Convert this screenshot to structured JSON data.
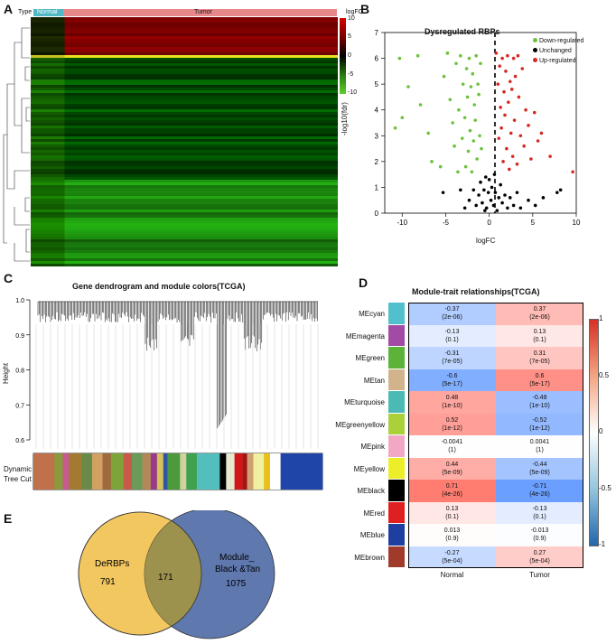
{
  "panels": {
    "A": "A",
    "B": "B",
    "C": "C",
    "D": "D",
    "E": "E"
  },
  "heatmap": {
    "type_label": "Type",
    "normal_label": "Normal",
    "tumor_label": "Tumor",
    "legend_title": "logFC",
    "legend_ticks": [
      "10",
      "5",
      "0",
      "-5",
      "-10"
    ],
    "colors": {
      "normal": "#4fb8c4",
      "tumor": "#e8878a",
      "high": "#d40000",
      "mid": "#000000",
      "low": "#5cd12a"
    }
  },
  "chart_data": [
    {
      "type": "scatter",
      "title": "Dysregulated RBPs",
      "xlabel": "logFC",
      "ylabel": "-log10(fdr)",
      "xlim": [
        -12,
        10
      ],
      "ylim": [
        0,
        7
      ],
      "xticks": [
        "-10",
        "-5",
        "0",
        "5",
        "10"
      ],
      "yticks": [
        "0",
        "1",
        "2",
        "3",
        "4",
        "5",
        "6",
        "7"
      ],
      "legend": [
        {
          "name": "Down-regulated",
          "color": "#6cc13c"
        },
        {
          "name": "Unchanged",
          "color": "#000000"
        },
        {
          "name": "Up-regulated",
          "color": "#d42a22"
        }
      ],
      "threshold_x": 0,
      "series": [
        {
          "name": "Down-regulated",
          "color": "#6cc13c",
          "points": [
            [
              -10.3,
              6.0
            ],
            [
              -8.2,
              6.1
            ],
            [
              -9.3,
              4.9
            ],
            [
              -10.8,
              3.3
            ],
            [
              -10.0,
              3.7
            ],
            [
              -7.9,
              4.2
            ],
            [
              -7.0,
              3.1
            ],
            [
              -6.6,
              2.0
            ],
            [
              -5.6,
              1.8
            ],
            [
              -5.2,
              5.3
            ],
            [
              -4.8,
              6.2
            ],
            [
              -4.5,
              4.4
            ],
            [
              -4.2,
              3.5
            ],
            [
              -4.0,
              2.6
            ],
            [
              -3.8,
              5.8
            ],
            [
              -3.6,
              1.6
            ],
            [
              -3.5,
              4.0
            ],
            [
              -3.3,
              6.1
            ],
            [
              -3.1,
              2.9
            ],
            [
              -3.0,
              5.0
            ],
            [
              -2.8,
              3.7
            ],
            [
              -2.7,
              1.8
            ],
            [
              -2.6,
              5.6
            ],
            [
              -2.5,
              4.5
            ],
            [
              -2.4,
              2.4
            ],
            [
              -2.3,
              6.0
            ],
            [
              -2.2,
              3.2
            ],
            [
              -2.1,
              4.9
            ],
            [
              -2.0,
              1.6
            ],
            [
              -1.9,
              5.4
            ],
            [
              -1.8,
              2.8
            ],
            [
              -1.7,
              4.2
            ],
            [
              -1.6,
              3.6
            ],
            [
              -1.5,
              6.1
            ],
            [
              -1.4,
              2.1
            ],
            [
              -1.3,
              5.0
            ],
            [
              -1.2,
              4.6
            ],
            [
              -1.1,
              3.0
            ],
            [
              -1.0,
              5.8
            ],
            [
              -0.9,
              2.5
            ]
          ]
        },
        {
          "name": "Unchanged",
          "color": "#000000",
          "points": [
            [
              -5.3,
              0.8
            ],
            [
              -3.3,
              0.9
            ],
            [
              -2.8,
              0.2
            ],
            [
              -2.3,
              0.5
            ],
            [
              -1.8,
              0.9
            ],
            [
              -1.5,
              0.3
            ],
            [
              -1.2,
              0.7
            ],
            [
              -1.0,
              1.2
            ],
            [
              -0.8,
              0.4
            ],
            [
              -0.6,
              0.9
            ],
            [
              -0.4,
              1.4
            ],
            [
              -0.3,
              0.2
            ],
            [
              -0.1,
              0.8
            ],
            [
              0.0,
              1.3
            ],
            [
              0.2,
              0.5
            ],
            [
              0.3,
              1.0
            ],
            [
              0.5,
              0.3
            ],
            [
              0.7,
              0.8
            ],
            [
              0.9,
              0.1
            ],
            [
              1.1,
              0.6
            ],
            [
              1.3,
              1.1
            ],
            [
              1.5,
              0.4
            ],
            [
              1.8,
              0.7
            ],
            [
              2.1,
              0.2
            ],
            [
              2.4,
              0.6
            ],
            [
              2.8,
              0.3
            ],
            [
              3.2,
              0.8
            ],
            [
              3.6,
              0.2
            ],
            [
              4.5,
              0.5
            ],
            [
              5.3,
              0.3
            ],
            [
              6.2,
              0.6
            ],
            [
              7.8,
              0.8
            ],
            [
              8.2,
              0.9
            ],
            [
              -0.5,
              0.1
            ],
            [
              0.6,
              1.5
            ]
          ]
        },
        {
          "name": "Up-regulated",
          "color": "#d42a22",
          "points": [
            [
              0.8,
              6.2
            ],
            [
              1.0,
              5.0
            ],
            [
              1.1,
              2.9
            ],
            [
              1.2,
              5.7
            ],
            [
              1.3,
              4.1
            ],
            [
              1.4,
              3.3
            ],
            [
              1.5,
              6.0
            ],
            [
              1.6,
              2.0
            ],
            [
              1.7,
              4.7
            ],
            [
              1.8,
              3.8
            ],
            [
              1.9,
              5.5
            ],
            [
              2.0,
              2.5
            ],
            [
              2.1,
              6.1
            ],
            [
              2.2,
              4.3
            ],
            [
              2.3,
              1.7
            ],
            [
              2.4,
              5.1
            ],
            [
              2.5,
              3.1
            ],
            [
              2.6,
              4.8
            ],
            [
              2.7,
              2.2
            ],
            [
              2.8,
              6.0
            ],
            [
              2.9,
              3.6
            ],
            [
              3.0,
              5.3
            ],
            [
              3.2,
              1.9
            ],
            [
              3.4,
              4.5
            ],
            [
              3.6,
              3.0
            ],
            [
              3.8,
              5.6
            ],
            [
              4.0,
              2.6
            ],
            [
              4.2,
              4.0
            ],
            [
              4.5,
              3.4
            ],
            [
              4.8,
              2.1
            ],
            [
              5.2,
              3.9
            ],
            [
              5.6,
              2.8
            ],
            [
              6.0,
              3.1
            ],
            [
              7.0,
              2.2
            ],
            [
              9.6,
              1.6
            ],
            [
              3.3,
              6.1
            ]
          ]
        }
      ]
    },
    {
      "type": "bar",
      "title": "Gene dendrogram and module colors(TCGA)",
      "ylabel": "Height",
      "ylim": [
        0.6,
        1.0
      ],
      "yticks": [
        "0.6",
        "0.7",
        "0.8",
        "0.9",
        "1.0"
      ],
      "track_label_1": "Dynamic",
      "track_label_2": "Tree Cut",
      "module_strip": [
        {
          "color": "#c0704a",
          "weight": 10
        },
        {
          "color": "#8a9a3a",
          "weight": 4
        },
        {
          "color": "#c65b8f",
          "weight": 3
        },
        {
          "color": "#a47a30",
          "weight": 6
        },
        {
          "color": "#6a8a4a",
          "weight": 5
        },
        {
          "color": "#d2a060",
          "weight": 5
        },
        {
          "color": "#9f6a3d",
          "weight": 4
        },
        {
          "color": "#7ea33b",
          "weight": 6
        },
        {
          "color": "#c85a4a",
          "weight": 4
        },
        {
          "color": "#6a9a58",
          "weight": 5
        },
        {
          "color": "#b28858",
          "weight": 4
        },
        {
          "color": "#9a3a8a",
          "weight": 3
        },
        {
          "color": "#d6c25a",
          "weight": 3
        },
        {
          "color": "#2f55a8",
          "weight": 2
        },
        {
          "color": "#4c9a3a",
          "weight": 6
        },
        {
          "color": "#d2d2a0",
          "weight": 3
        },
        {
          "color": "#3fa050",
          "weight": 5
        },
        {
          "color": "#52bfbc",
          "weight": 11
        },
        {
          "color": "#000000",
          "weight": 3
        },
        {
          "color": "#e8e8d0",
          "weight": 4
        },
        {
          "color": "#d01818",
          "weight": 4
        },
        {
          "color": "#9a1818",
          "weight": 2
        },
        {
          "color": "#d0a070",
          "weight": 3
        },
        {
          "color": "#f0f0a0",
          "weight": 5
        },
        {
          "color": "#e8c020",
          "weight": 3
        },
        {
          "color": "#ffffff",
          "weight": 5
        },
        {
          "color": "#2045a8",
          "weight": 20
        }
      ]
    },
    {
      "type": "heatmap",
      "title": "Module-trait relationships(TCGA)",
      "columns": [
        "Normal",
        "Tumor"
      ],
      "colorbar_ticks": [
        "1",
        "0.5",
        "0",
        "-0.5",
        "-1"
      ],
      "rows": [
        {
          "name": "MEcyan",
          "color": "#52bfcc",
          "values": [
            {
              "r": "-0.37",
              "p": "(2e-06)"
            },
            {
              "r": "0.37",
              "p": "(2e-06)"
            }
          ],
          "num": [
            -0.37,
            0.37
          ]
        },
        {
          "name": "MEmagenta",
          "color": "#a24ba4",
          "values": [
            {
              "r": "-0.13",
              "p": "(0.1)"
            },
            {
              "r": "0.13",
              "p": "(0.1)"
            }
          ],
          "num": [
            -0.13,
            0.13
          ]
        },
        {
          "name": "MEgreen",
          "color": "#5db33a",
          "values": [
            {
              "r": "-0.31",
              "p": "(7e-05)"
            },
            {
              "r": "0.31",
              "p": "(7e-05)"
            }
          ],
          "num": [
            -0.31,
            0.31
          ]
        },
        {
          "name": "MEtan",
          "color": "#d2b48c",
          "values": [
            {
              "r": "-0.6",
              "p": "(5e-17)"
            },
            {
              "r": "0.6",
              "p": "(5e-17)"
            }
          ],
          "num": [
            -0.6,
            0.6
          ]
        },
        {
          "name": "MEturquoise",
          "color": "#4cbab4",
          "values": [
            {
              "r": "0.48",
              "p": "(1e-10)"
            },
            {
              "r": "-0.48",
              "p": "(1e-10)"
            }
          ],
          "num": [
            0.48,
            -0.48
          ]
        },
        {
          "name": "MEgreenyellow",
          "color": "#aad03a",
          "values": [
            {
              "r": "0.52",
              "p": "(1e-12)"
            },
            {
              "r": "-0.52",
              "p": "(1e-12)"
            }
          ],
          "num": [
            0.52,
            -0.52
          ]
        },
        {
          "name": "MEpink",
          "color": "#f2a8c4",
          "values": [
            {
              "r": "-0.0041",
              "p": "(1)"
            },
            {
              "r": "0.0041",
              "p": "(1)"
            }
          ],
          "num": [
            -0.0041,
            0.0041
          ]
        },
        {
          "name": "MEyellow",
          "color": "#eeee28",
          "values": [
            {
              "r": "0.44",
              "p": "(5e-09)"
            },
            {
              "r": "-0.44",
              "p": "(5e-09)"
            }
          ],
          "num": [
            0.44,
            -0.44
          ]
        },
        {
          "name": "MEblack",
          "color": "#000000",
          "values": [
            {
              "r": "0.71",
              "p": "(4e-26)"
            },
            {
              "r": "-0.71",
              "p": "(4e-26)"
            }
          ],
          "num": [
            0.71,
            -0.71
          ]
        },
        {
          "name": "MEred",
          "color": "#e02020",
          "values": [
            {
              "r": "0.13",
              "p": "(0.1)"
            },
            {
              "r": "-0.13",
              "p": "(0.1)"
            }
          ],
          "num": [
            0.13,
            -0.13
          ]
        },
        {
          "name": "MEblue",
          "color": "#1f3fa0",
          "values": [
            {
              "r": "0.013",
              "p": "(0.9)"
            },
            {
              "r": "-0.013",
              "p": "(0.9)"
            }
          ],
          "num": [
            0.013,
            -0.013
          ]
        },
        {
          "name": "MEbrown",
          "color": "#a03a2a",
          "values": [
            {
              "r": "-0.27",
              "p": "(5e-04)"
            },
            {
              "r": "0.27",
              "p": "(5e-04)"
            }
          ],
          "num": [
            -0.27,
            0.27
          ]
        }
      ]
    }
  ],
  "venn": {
    "left_label": "DeRBPs",
    "left_count": "791",
    "overlap_count": "171",
    "right_label_1": "Module_",
    "right_label_2": "Black &Tan",
    "right_count": "1075",
    "left_color": "#f2c760",
    "right_color": "#5f78ad",
    "overlap_color": "#9c924e"
  }
}
